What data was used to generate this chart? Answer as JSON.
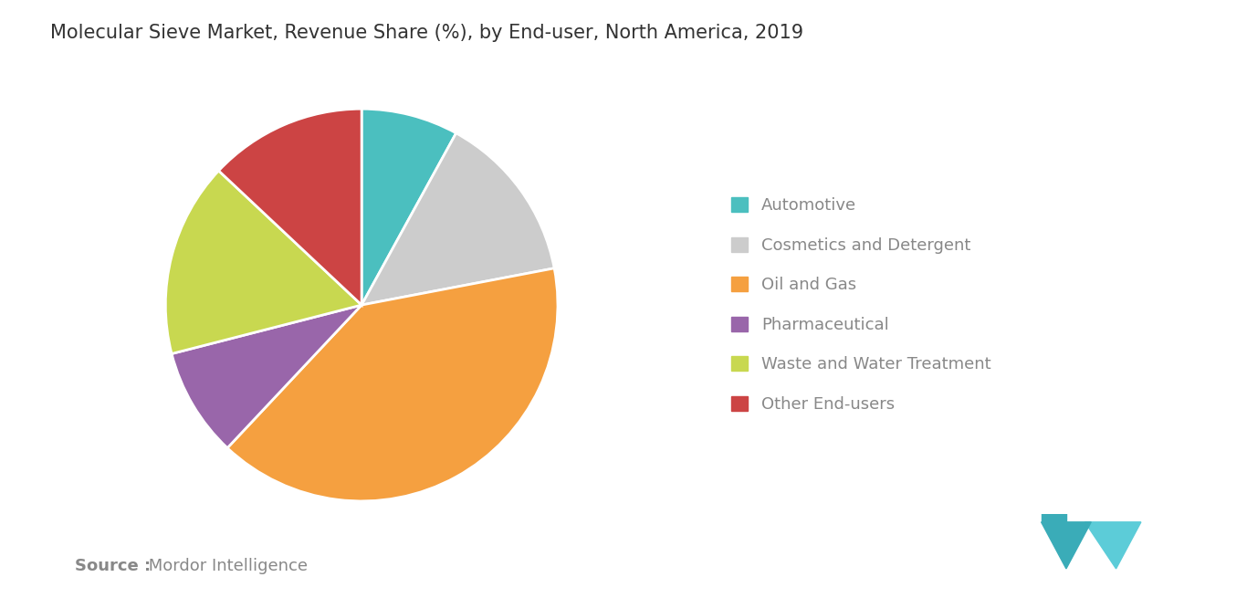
{
  "title": "Molecular Sieve Market, Revenue Share (%), by End-user, North America, 2019",
  "segments": [
    {
      "label": "Automotive",
      "value": 8,
      "color": "#4BBFBF"
    },
    {
      "label": "Cosmetics and Detergent",
      "value": 14,
      "color": "#CCCCCC"
    },
    {
      "label": "Oil and Gas",
      "value": 40,
      "color": "#F5A040"
    },
    {
      "label": "Pharmaceutical",
      "value": 9,
      "color": "#9966AA"
    },
    {
      "label": "Waste and Water Treatment",
      "value": 16,
      "color": "#C8D850"
    },
    {
      "label": "Other End-users",
      "value": 13,
      "color": "#CC4444"
    }
  ],
  "source_bold": "Source :",
  "source_normal": " Mordor Intelligence",
  "source_color": "#888888",
  "title_color": "#333333",
  "background_color": "#FFFFFF",
  "legend_text_color": "#888888",
  "start_angle": 90,
  "title_fontsize": 15,
  "legend_fontsize": 13,
  "source_fontsize": 13,
  "logo_color1": "#3AACB8",
  "logo_color2": "#5CCCD8"
}
